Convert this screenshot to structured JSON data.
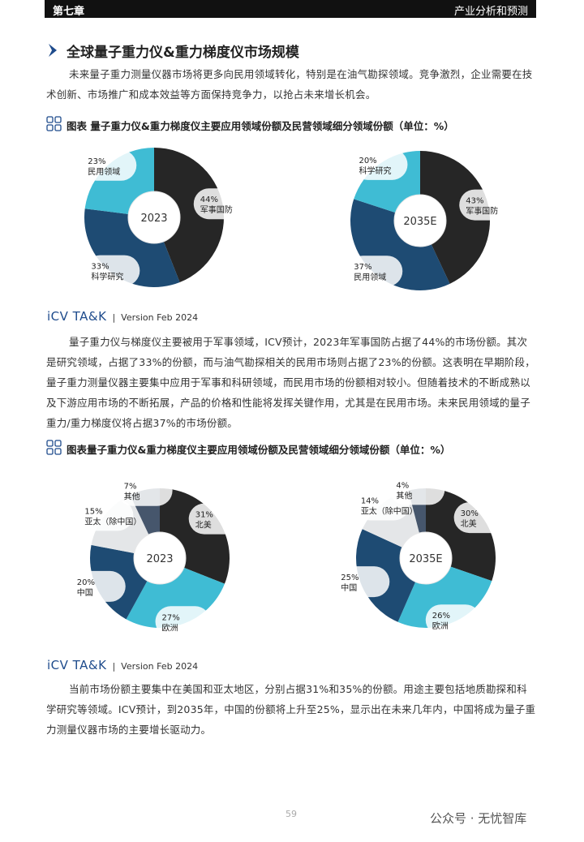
{
  "header": {
    "chapter": "第七章",
    "section": "产业分析和预测"
  },
  "title": "全球量子重力仪&重力梯度仪市场规模",
  "paragraphs": [
    "未来量子重力测量仪器市场将更多向民用领域转化，特别是在油气勘探领域。竞争激烈，企业需要在技术创新、市场推广和成本效益等方面保持竞争力，以抢占未来增长机会。",
    "量子重力仪与梯度仪主要被用于军事领域，ICV预计，2023年军事国防占据了44%的市场份额。其次是研究领域，占据了33%的份额，而与油气勘探相关的民用市场则占据了23%的份额。这表明在早期阶段，量子重力测量仪器主要集中应用于军事和科研领域，而民用市场的份额相对较小。但随着技术的不断成熟以及下游应用市场的不断拓展，产品的价格和性能将发挥关键作用，尤其是在民用市场。未来民用领域的量子重力/重力梯度仪将占据37%的市场份额。",
    "当前市场份额主要集中在美国和亚太地区，分别占据31%和35%的份额。用途主要包括地质勘探和科学研究等领域。ICV预计，到2035年，中国的份额将上升至25%，显示出在未来几年内，中国将成为量子重力测量仪器市场的主要增长驱动力。"
  ],
  "figures": [
    {
      "caption": "图表 量子重力仪&重力梯度仪主要应用领域份额及民营领域细分领域份额（单位：%）",
      "source_brand": "iCV TA&K",
      "source_version": "Version Feb 2024"
    },
    {
      "caption": "图表量子重力仪&重力梯度仪主要应用领域份额及民营领域细分领域份额（单位：%）",
      "source_brand": "iCV TA&K",
      "source_version": "Version Feb 2024"
    }
  ],
  "chart_data": [
    {
      "type": "pie",
      "center_label": "2023",
      "categories": [
        "军事国防",
        "科学研究",
        "民用领域"
      ],
      "values": [
        44,
        33,
        23
      ],
      "value_labels": [
        "44%",
        "33%",
        "23%"
      ],
      "colors": [
        "#262626",
        "#1e4b73",
        "#3fbcd4"
      ]
    },
    {
      "type": "pie",
      "center_label": "2035E",
      "categories": [
        "军事国防",
        "民用领域",
        "科学研究"
      ],
      "values": [
        43,
        37,
        20
      ],
      "value_labels": [
        "43%",
        "37%",
        "20%"
      ],
      "colors": [
        "#262626",
        "#1e4b73",
        "#3fbcd4"
      ]
    },
    {
      "type": "pie",
      "center_label": "2023",
      "categories": [
        "北美",
        "欧洲",
        "中国",
        "亚太（除中国）",
        "其他"
      ],
      "values": [
        31,
        27,
        20,
        15,
        7
      ],
      "value_labels": [
        "31%",
        "27%",
        "20%",
        "15%",
        "7%"
      ],
      "colors": [
        "#262626",
        "#3fbcd4",
        "#1e4b73",
        "#e4e6e8",
        "#46566c"
      ]
    },
    {
      "type": "pie",
      "center_label": "2035E",
      "categories": [
        "北美",
        "欧洲",
        "中国",
        "亚太（除中国）",
        "其他"
      ],
      "values": [
        30,
        26,
        25,
        14,
        4
      ],
      "value_labels": [
        "30%",
        "26%",
        "25%",
        "14%",
        "4%"
      ],
      "colors": [
        "#262626",
        "#3fbcd4",
        "#1e4b73",
        "#e4e6e8",
        "#46566c"
      ]
    }
  ],
  "page_number": "59",
  "watermark": "公众号 · 无忧智库"
}
